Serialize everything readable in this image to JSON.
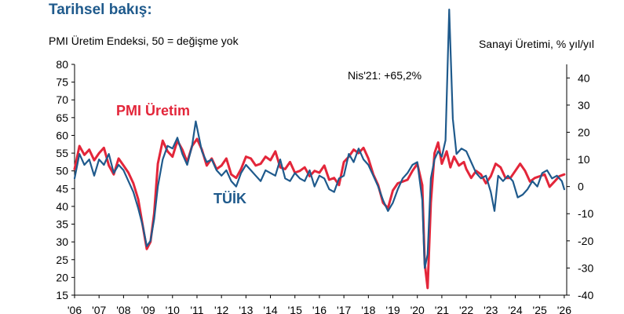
{
  "header": {
    "title": "Tarihsel bakış:",
    "subtitle": "PMI Üretim Endeksi, 50 = değişme yok",
    "right_axis_label": "Sanayi Üretimi, % yıl/yıl"
  },
  "chart_data": {
    "type": "line",
    "annotation": "Nis'21: +65,2%",
    "left_ylim": [
      15,
      80
    ],
    "right_ylim": [
      -40,
      45
    ],
    "left_ticks": [
      "15",
      "20",
      "25",
      "30",
      "35",
      "40",
      "45",
      "50",
      "55",
      "60",
      "65",
      "70",
      "75",
      "80"
    ],
    "right_ticks": [
      "-40",
      "-30",
      "-20",
      "-10",
      "0",
      "10",
      "20",
      "30",
      "40"
    ],
    "x_ticks": [
      "'06",
      "'07",
      "'08",
      "'09",
      "'10",
      "'11",
      "'12",
      "'13",
      "'14",
      "'15",
      "'16",
      "'17",
      "'18",
      "'19",
      "'20",
      "'21",
      "'22",
      "'23",
      "'24",
      "'25",
      "'26"
    ],
    "xlim": [
      2006.0,
      2026.1
    ],
    "series": [
      {
        "name": "PMI Üretim",
        "axis": "left",
        "color": "#e3263a",
        "x": [
          2006.0,
          2006.2,
          2006.4,
          2006.6,
          2006.8,
          2007.0,
          2007.2,
          2007.4,
          2007.6,
          2007.8,
          2008.0,
          2008.2,
          2008.4,
          2008.6,
          2008.8,
          2008.95,
          2009.1,
          2009.25,
          2009.4,
          2009.6,
          2009.8,
          2010.0,
          2010.2,
          2010.4,
          2010.6,
          2010.8,
          2011.0,
          2011.2,
          2011.4,
          2011.6,
          2011.8,
          2012.0,
          2012.2,
          2012.4,
          2012.6,
          2012.8,
          2013.0,
          2013.2,
          2013.4,
          2013.6,
          2013.8,
          2014.0,
          2014.2,
          2014.4,
          2014.6,
          2014.8,
          2015.0,
          2015.2,
          2015.4,
          2015.6,
          2015.8,
          2016.0,
          2016.2,
          2016.4,
          2016.6,
          2016.8,
          2017.0,
          2017.2,
          2017.4,
          2017.6,
          2017.8,
          2018.0,
          2018.2,
          2018.4,
          2018.6,
          2018.8,
          2019.0,
          2019.2,
          2019.4,
          2019.6,
          2019.8,
          2020.0,
          2020.2,
          2020.3,
          2020.42,
          2020.55,
          2020.7,
          2020.85,
          2021.0,
          2021.2,
          2021.35,
          2021.5,
          2021.7,
          2021.9,
          2022.0,
          2022.2,
          2022.4,
          2022.6,
          2022.8,
          2023.0,
          2023.2,
          2023.4,
          2023.6,
          2023.8,
          2024.0,
          2024.2,
          2024.4,
          2024.6,
          2024.8,
          2025.0,
          2025.2,
          2025.4,
          2025.6,
          2025.8,
          2026.0
        ],
        "y": [
          50.5,
          57.0,
          54.5,
          56.0,
          53.0,
          55.0,
          56.5,
          51.5,
          49.0,
          53.5,
          51.5,
          49.5,
          46.5,
          42.0,
          34.0,
          28.0,
          30.0,
          38.0,
          52.0,
          58.5,
          55.5,
          54.0,
          58.5,
          56.0,
          52.5,
          57.0,
          59.0,
          56.0,
          51.5,
          53.5,
          50.5,
          51.5,
          53.5,
          49.0,
          48.0,
          50.5,
          54.0,
          53.5,
          51.5,
          52.0,
          54.0,
          53.0,
          55.5,
          51.0,
          50.5,
          52.5,
          49.5,
          50.0,
          51.0,
          48.5,
          50.0,
          49.5,
          51.5,
          47.5,
          48.0,
          46.0,
          52.5,
          54.0,
          56.0,
          55.0,
          56.5,
          53.5,
          49.0,
          46.0,
          41.0,
          39.5,
          44.5,
          46.5,
          47.0,
          47.5,
          50.0,
          52.0,
          46.0,
          24.0,
          17.0,
          41.0,
          55.0,
          58.0,
          52.0,
          55.5,
          51.0,
          54.0,
          51.5,
          52.5,
          50.5,
          48.0,
          50.0,
          49.0,
          46.5,
          48.5,
          52.0,
          51.0,
          48.0,
          48.0,
          50.0,
          52.0,
          50.0,
          47.0,
          48.0,
          48.5,
          49.0,
          45.5,
          47.0,
          48.5,
          49.0
        ]
      },
      {
        "name": "TÜİK",
        "axis": "right",
        "color": "#1f5a8c",
        "x": [
          2006.0,
          2006.2,
          2006.4,
          2006.6,
          2006.8,
          2007.0,
          2007.2,
          2007.4,
          2007.6,
          2007.8,
          2008.0,
          2008.2,
          2008.4,
          2008.6,
          2008.8,
          2008.95,
          2009.1,
          2009.25,
          2009.4,
          2009.6,
          2009.8,
          2010.0,
          2010.2,
          2010.4,
          2010.6,
          2010.8,
          2010.95,
          2011.2,
          2011.4,
          2011.6,
          2011.8,
          2012.0,
          2012.2,
          2012.4,
          2012.6,
          2012.8,
          2013.0,
          2013.2,
          2013.4,
          2013.6,
          2013.8,
          2014.0,
          2014.2,
          2014.4,
          2014.6,
          2014.8,
          2015.0,
          2015.2,
          2015.4,
          2015.6,
          2015.8,
          2016.0,
          2016.2,
          2016.4,
          2016.6,
          2016.8,
          2017.0,
          2017.2,
          2017.4,
          2017.6,
          2017.8,
          2018.0,
          2018.2,
          2018.4,
          2018.6,
          2018.8,
          2019.0,
          2019.2,
          2019.4,
          2019.6,
          2019.8,
          2020.0,
          2020.2,
          2020.3,
          2020.42,
          2020.55,
          2020.7,
          2020.85,
          2021.0,
          2021.15,
          2021.3,
          2021.45,
          2021.6,
          2021.8,
          2022.0,
          2022.2,
          2022.4,
          2022.6,
          2022.8,
          2023.0,
          2023.15,
          2023.3,
          2023.5,
          2023.7,
          2023.9,
          2024.1,
          2024.3,
          2024.5,
          2024.7,
          2024.9,
          2025.1,
          2025.3,
          2025.5,
          2025.7,
          2025.9,
          2026.0
        ],
        "y": [
          3.0,
          12.0,
          8.0,
          10.0,
          4.0,
          10.0,
          8.0,
          12.0,
          5.0,
          8.0,
          6.0,
          2.0,
          -2.0,
          -8.0,
          -15.0,
          -22.0,
          -20.0,
          -12.0,
          0.0,
          10.0,
          15.0,
          14.0,
          18.0,
          12.0,
          8.0,
          15.0,
          24.0,
          13.0,
          9.0,
          10.0,
          6.0,
          4.0,
          6.0,
          2.0,
          0.0,
          5.0,
          8.0,
          6.0,
          4.0,
          2.0,
          6.0,
          5.0,
          4.0,
          10.0,
          3.0,
          2.0,
          5.0,
          3.0,
          2.0,
          6.0,
          0.0,
          4.0,
          3.0,
          -1.0,
          -2.0,
          3.0,
          4.0,
          12.0,
          9.0,
          14.0,
          10.0,
          8.0,
          4.0,
          0.0,
          -5.0,
          -9.0,
          -6.0,
          -1.0,
          3.0,
          5.0,
          8.0,
          9.0,
          -5.0,
          -30.0,
          -25.0,
          3.0,
          10.0,
          13.0,
          11.0,
          17.0,
          65.2,
          25.0,
          12.0,
          14.0,
          13.0,
          9.0,
          5.0,
          3.0,
          4.0,
          -2.0,
          -9.0,
          4.0,
          2.0,
          4.0,
          2.0,
          -4.0,
          -3.0,
          -1.0,
          2.0,
          0.0,
          5.0,
          6.0,
          3.0,
          4.0,
          2.0,
          -1.0
        ]
      }
    ]
  }
}
